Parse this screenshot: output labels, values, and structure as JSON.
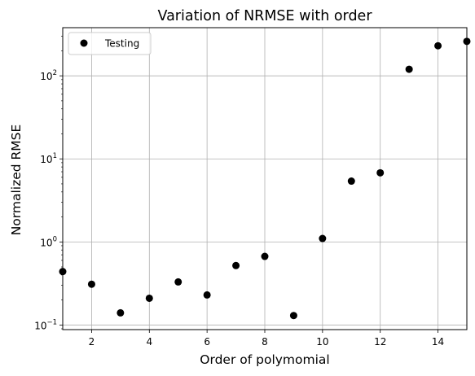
{
  "chart_data": {
    "type": "scatter",
    "title": "Variation of NRMSE with order",
    "xlabel": "Order of polymomial",
    "ylabel": "Normalized RMSE",
    "xlim": [
      1,
      15
    ],
    "ylim": [
      0.088,
      380
    ],
    "yscale": "log",
    "grid": true,
    "x_ticks": [
      2,
      4,
      6,
      8,
      10,
      12,
      14
    ],
    "x_tick_labels": [
      "2",
      "4",
      "6",
      "8",
      "10",
      "12",
      "14"
    ],
    "y_ticks": [
      0.1,
      1,
      10,
      100
    ],
    "y_tick_labels": [
      {
        "base": "10",
        "exp": "−1"
      },
      {
        "base": "10",
        "exp": "0"
      },
      {
        "base": "10",
        "exp": "1"
      },
      {
        "base": "10",
        "exp": "2"
      }
    ],
    "legend_position": "upper-left",
    "marker_color": "#000000",
    "series": [
      {
        "name": "Testing",
        "x": [
          1,
          2,
          3,
          4,
          5,
          6,
          7,
          8,
          9,
          10,
          11,
          12,
          13,
          14,
          15
        ],
        "y": [
          0.44,
          0.31,
          0.14,
          0.21,
          0.33,
          0.23,
          0.52,
          0.67,
          0.13,
          1.1,
          5.4,
          6.8,
          120,
          230,
          260
        ]
      }
    ]
  }
}
